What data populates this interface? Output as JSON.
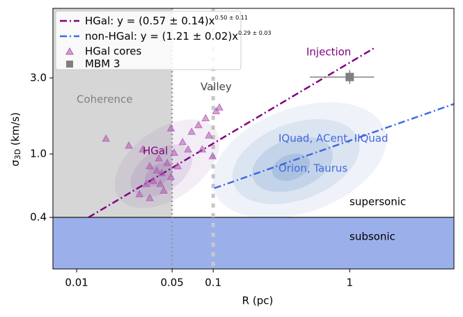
{
  "chart_data": {
    "type": "scatter",
    "x_label": "R (pc)",
    "y_label": {
      "symbol": "σ",
      "sub": "3D",
      "unit": " (km/s)"
    },
    "log_x": true,
    "log_y": true,
    "xlim": [
      0.0067,
      5.8
    ],
    "ylim": [
      0.19,
      8.2
    ],
    "xticks": [
      0.01,
      0.05,
      0.1,
      1
    ],
    "yticks": [
      {
        "value": 0.4,
        "label": "0.4"
      },
      {
        "value": 1,
        "label": "1.0"
      },
      {
        "value": 3,
        "label": "3.0"
      }
    ],
    "regions": [
      {
        "name": "coherence",
        "axis": "x",
        "max": 0.05,
        "color": "#d6d6d6"
      },
      {
        "name": "subsonic",
        "axis": "y",
        "max": 0.4,
        "color": "#9bb0ea"
      }
    ],
    "vlines": [
      0.05,
      0.1
    ],
    "lines": [
      {
        "name": "HGal: y = (0.57 ± 0.14)x",
        "exponent": "0.50 ± 0.11",
        "color": "#800080",
        "x": [
          0.0122,
          1.5
        ],
        "y": [
          0.4,
          4.6
        ]
      },
      {
        "name": "non-HGal: y = (1.21 ± 0.02)x",
        "exponent": "0.29 ± 0.03",
        "color": "#4169e1",
        "x": [
          0.102,
          5.8
        ],
        "y": [
          0.61,
          2.06
        ]
      }
    ],
    "series": [
      {
        "name": "HGal cores",
        "color": "#b05ab0",
        "x": [
          0.0164,
          0.0241,
          0.0305,
          0.0343,
          0.0386,
          0.042,
          0.046,
          0.049,
          0.0364,
          0.0324,
          0.04,
          0.0518,
          0.0597,
          0.0695,
          0.078,
          0.088,
          0.093,
          0.105,
          0.111,
          0.0655,
          0.0288,
          0.0343,
          0.0434,
          0.055,
          0.083,
          0.099,
          0.049,
          0.041
        ],
        "values": [
          1.25,
          1.13,
          1.07,
          0.84,
          0.79,
          0.76,
          0.88,
          0.72,
          0.68,
          0.65,
          0.94,
          1.02,
          1.19,
          1.38,
          1.52,
          1.68,
          1.31,
          1.86,
          1.96,
          1.07,
          0.56,
          0.53,
          0.59,
          0.84,
          1.07,
          0.97,
          1.45,
          0.65
        ]
      },
      {
        "name": "MBM 3",
        "color": "#808080",
        "x": [
          1
        ],
        "values": [
          3.04
        ],
        "x_range": [
          0.51,
          1.51
        ],
        "y_range": [
          2.75,
          3.36
        ]
      }
    ],
    "annotations": [
      "Coherence",
      "Valley",
      "Injection",
      "HGal",
      "IQuad, ACent, IIQuad",
      "Orion, Taurus",
      "supersonic",
      "subsonic"
    ]
  }
}
